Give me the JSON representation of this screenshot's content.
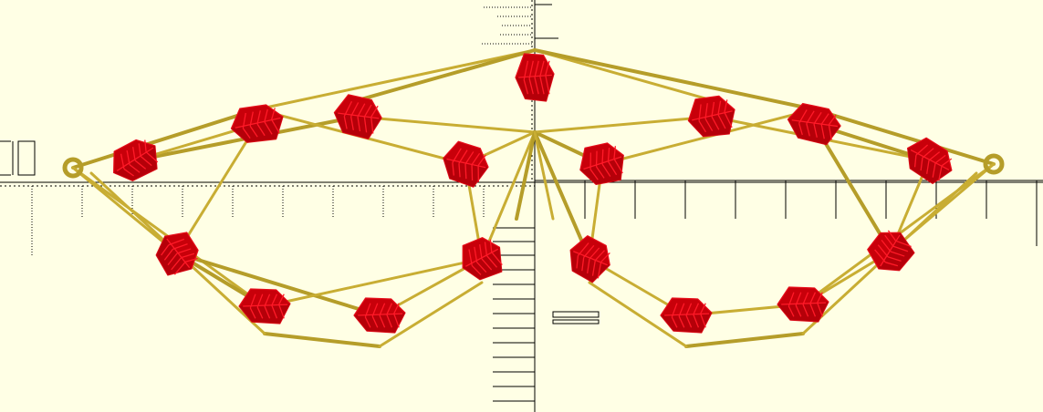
{
  "viewport": {
    "background": "#ffffe5",
    "axes_color": "#000000"
  },
  "model": {
    "leaf_color": "#c8000a",
    "leaf_highlight": "#ff1a28",
    "strut_color": "#b59d29"
  }
}
